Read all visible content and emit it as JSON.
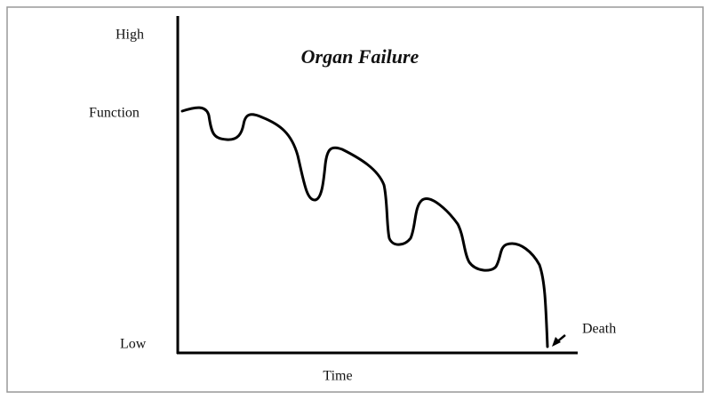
{
  "title": "Organ Failure",
  "y_axis": {
    "top_label": "High",
    "middle_label": "Function",
    "bottom_label": "Low"
  },
  "x_axis": {
    "label": "Time"
  },
  "annotation": "Death"
}
